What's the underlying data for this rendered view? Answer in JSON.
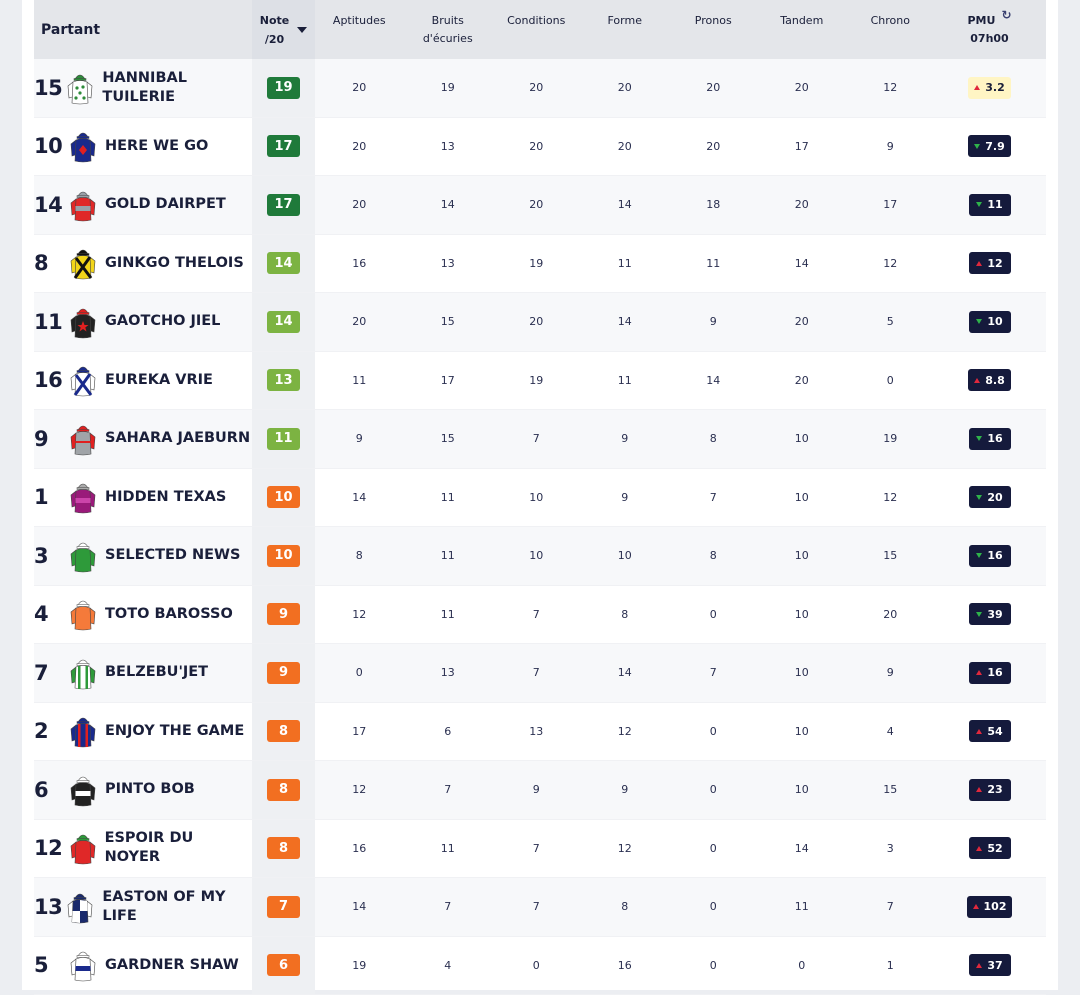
{
  "header": {
    "partant": "Partant",
    "note": "Note",
    "note_sub": "/20",
    "columns": [
      {
        "key": "aptitudes",
        "label": "Aptitudes"
      },
      {
        "key": "bruits",
        "label": "Bruits d'écuries"
      },
      {
        "key": "conditions",
        "label": "Conditions"
      },
      {
        "key": "forme",
        "label": "Forme"
      },
      {
        "key": "pronos",
        "label": "Pronos"
      },
      {
        "key": "tandem",
        "label": "Tandem"
      },
      {
        "key": "chrono",
        "label": "Chrono"
      }
    ],
    "pmu": "PMU",
    "pmu_time": "07h00"
  },
  "colors": {
    "dark_green": "#1f7a3a",
    "light_green": "#7cb342",
    "orange": "#f26f21",
    "odds_bg": "#151a3c",
    "trend_up": "#e0283c",
    "trend_down": "#2fb34a"
  },
  "rows": [
    {
      "num": "15",
      "name": "HANNIBAL TUILERIE",
      "silk": {
        "body": "#ffffff",
        "spots": "#2e8b3a",
        "sleeve": "#ffffff",
        "cap": "#2e8b3a",
        "pattern": "spots"
      },
      "note": "19",
      "note_color": "dark",
      "scores": [
        "20",
        "19",
        "20",
        "20",
        "20",
        "20",
        "12"
      ],
      "odds": "3.2",
      "trend": "up",
      "highlight": true
    },
    {
      "num": "10",
      "name": "HERE WE GO",
      "silk": {
        "body": "#1a2a8c",
        "spots": "#e02020",
        "sleeve": "#1a2a8c",
        "cap": "#1a2a8c",
        "pattern": "diamond"
      },
      "note": "17",
      "note_color": "dark",
      "scores": [
        "20",
        "13",
        "20",
        "20",
        "20",
        "17",
        "9"
      ],
      "odds": "7.9",
      "trend": "down",
      "highlight": false
    },
    {
      "num": "14",
      "name": "GOLD DAIRPET",
      "silk": {
        "body": "#e02828",
        "spots": "#9aa0a8",
        "sleeve": "#e02828",
        "cap": "#9aa0a8",
        "pattern": "band"
      },
      "note": "17",
      "note_color": "dark",
      "scores": [
        "20",
        "14",
        "20",
        "14",
        "18",
        "20",
        "17"
      ],
      "odds": "11",
      "trend": "down",
      "highlight": false
    },
    {
      "num": "8",
      "name": "GINKGO THELOIS",
      "silk": {
        "body": "#f2d51a",
        "spots": "#111111",
        "sleeve": "#f2d51a",
        "cap": "#111111",
        "pattern": "cross"
      },
      "note": "14",
      "note_color": "light",
      "scores": [
        "16",
        "13",
        "19",
        "11",
        "11",
        "14",
        "12"
      ],
      "odds": "12",
      "trend": "up",
      "highlight": false
    },
    {
      "num": "11",
      "name": "GAOTCHO JIEL",
      "silk": {
        "body": "#222222",
        "spots": "#e02020",
        "sleeve": "#222222",
        "cap": "#e02020",
        "pattern": "star"
      },
      "note": "14",
      "note_color": "light",
      "scores": [
        "20",
        "15",
        "20",
        "14",
        "9",
        "20",
        "5"
      ],
      "odds": "10",
      "trend": "down",
      "highlight": false
    },
    {
      "num": "16",
      "name": "EUREKA VRIE",
      "silk": {
        "body": "#ffffff",
        "spots": "#1a2a8c",
        "sleeve": "#ffffff",
        "cap": "#1a2a8c",
        "pattern": "cross"
      },
      "note": "13",
      "note_color": "light",
      "scores": [
        "11",
        "17",
        "19",
        "11",
        "14",
        "20",
        "0"
      ],
      "odds": "8.8",
      "trend": "up",
      "highlight": false
    },
    {
      "num": "9",
      "name": "SAHARA JAEBURN",
      "silk": {
        "body": "#a0a4a8",
        "spots": "#e02020",
        "sleeve": "#e02020",
        "cap": "#e02020",
        "pattern": "sleeves"
      },
      "note": "11",
      "note_color": "light",
      "scores": [
        "9",
        "15",
        "7",
        "9",
        "8",
        "10",
        "19"
      ],
      "odds": "16",
      "trend": "down",
      "highlight": false
    },
    {
      "num": "1",
      "name": "HIDDEN TEXAS",
      "silk": {
        "body": "#9a1a7a",
        "spots": "#cc44aa",
        "sleeve": "#9a1a7a",
        "cap": "#aaaaaa",
        "pattern": "band"
      },
      "note": "10",
      "note_color": "orange",
      "scores": [
        "14",
        "11",
        "10",
        "9",
        "7",
        "10",
        "12"
      ],
      "odds": "20",
      "trend": "down",
      "highlight": false
    },
    {
      "num": "3",
      "name": "SELECTED NEWS",
      "silk": {
        "body": "#2e9a3a",
        "spots": "#2e9a3a",
        "sleeve": "#2e9a3a",
        "cap": "#ffffff",
        "pattern": "plain"
      },
      "note": "10",
      "note_color": "orange",
      "scores": [
        "8",
        "11",
        "10",
        "10",
        "8",
        "10",
        "15"
      ],
      "odds": "16",
      "trend": "down",
      "highlight": false
    },
    {
      "num": "4",
      "name": "TOTO BAROSSO",
      "silk": {
        "body": "#f57a3a",
        "spots": "#f57a3a",
        "sleeve": "#f57a3a",
        "cap": "#ffffff",
        "pattern": "plain"
      },
      "note": "9",
      "note_color": "orange",
      "scores": [
        "12",
        "11",
        "7",
        "8",
        "0",
        "10",
        "20"
      ],
      "odds": "39",
      "trend": "down",
      "highlight": false
    },
    {
      "num": "7",
      "name": "BELZEBU'JET",
      "silk": {
        "body": "#ffffff",
        "spots": "#2e9a3a",
        "sleeve": "#2e9a3a",
        "cap": "#ffffff",
        "pattern": "stripes"
      },
      "note": "9",
      "note_color": "orange",
      "scores": [
        "0",
        "13",
        "7",
        "14",
        "7",
        "10",
        "9"
      ],
      "odds": "16",
      "trend": "up",
      "highlight": false
    },
    {
      "num": "2",
      "name": "ENJOY THE GAME",
      "silk": {
        "body": "#1a2a8c",
        "spots": "#e02020",
        "sleeve": "#1a2a8c",
        "cap": "#1a2a8c",
        "pattern": "stripes"
      },
      "note": "8",
      "note_color": "orange",
      "scores": [
        "17",
        "6",
        "13",
        "12",
        "0",
        "10",
        "4"
      ],
      "odds": "54",
      "trend": "up",
      "highlight": false
    },
    {
      "num": "6",
      "name": "PINTO BOB",
      "silk": {
        "body": "#222222",
        "spots": "#ffffff",
        "sleeve": "#222222",
        "cap": "#ffffff",
        "pattern": "band"
      },
      "note": "8",
      "note_color": "orange",
      "scores": [
        "12",
        "7",
        "9",
        "9",
        "0",
        "10",
        "15"
      ],
      "odds": "23",
      "trend": "up",
      "highlight": false
    },
    {
      "num": "12",
      "name": "ESPOIR DU NOYER",
      "silk": {
        "body": "#e02828",
        "spots": "#e02828",
        "sleeve": "#e02828",
        "cap": "#2e9a3a",
        "pattern": "plain"
      },
      "note": "8",
      "note_color": "orange",
      "scores": [
        "16",
        "11",
        "7",
        "12",
        "0",
        "14",
        "3"
      ],
      "odds": "52",
      "trend": "up",
      "highlight": false
    },
    {
      "num": "13",
      "name": "EASTON OF MY LIFE",
      "silk": {
        "body": "#1a2a6c",
        "spots": "#ffffff",
        "sleeve": "#ffffff",
        "cap": "#1a2a6c",
        "pattern": "quarters"
      },
      "note": "7",
      "note_color": "orange",
      "scores": [
        "14",
        "7",
        "7",
        "8",
        "0",
        "11",
        "7"
      ],
      "odds": "102",
      "trend": "up",
      "highlight": false
    },
    {
      "num": "5",
      "name": "GARDNER SHAW",
      "silk": {
        "body": "#ffffff",
        "spots": "#1a2a8c",
        "sleeve": "#ffffff",
        "cap": "#ffffff",
        "pattern": "band"
      },
      "note": "6",
      "note_color": "orange",
      "scores": [
        "19",
        "4",
        "0",
        "16",
        "0",
        "0",
        "1"
      ],
      "odds": "37",
      "trend": "up",
      "highlight": false
    }
  ]
}
